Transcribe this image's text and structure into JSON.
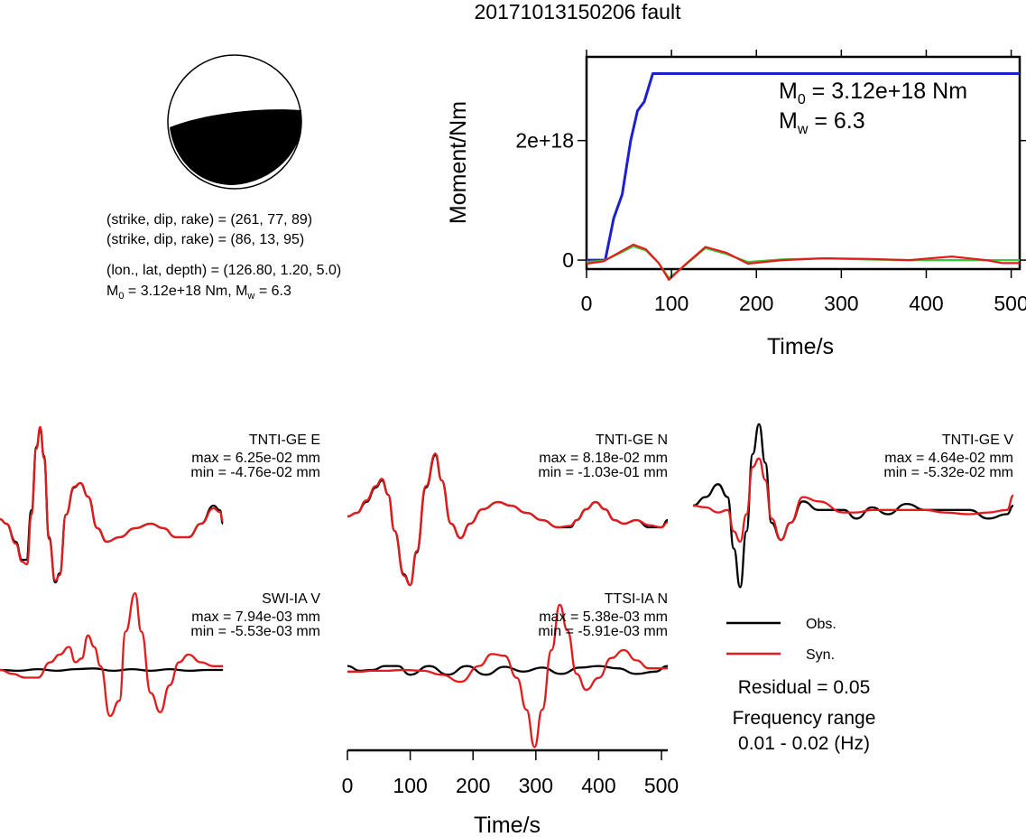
{
  "title": "20171013150206 fault",
  "focal": {
    "line1": "(strike, dip, rake) = (261, 77, 89)",
    "line2": "(strike, dip, rake) = (86, 13, 95)",
    "line3": "(lon., lat, depth) = (126.80, 1.20, 5.0)",
    "m0_prefix": "M",
    "m0_sub": "0",
    "m0_rest": " = 3.12e+18 Nm, M",
    "mw_sub": "w",
    "mw_rest": " = 6.3"
  },
  "moment_plot": {
    "ylabel": "Moment/Nm",
    "xlabel": "Time/s",
    "m0_label_prefix": "M",
    "m0_label_sub": "0",
    "m0_label_rest": " = 3.12e+18 Nm",
    "mw_label_prefix": "M",
    "mw_label_sub": "w",
    "mw_label_rest": " = 6.3",
    "xticks": [
      "0",
      "100",
      "200",
      "300",
      "400",
      "500"
    ],
    "yticks": [
      "0",
      "2e+18"
    ]
  },
  "waveforms": [
    {
      "station": "TNTI-GE E",
      "max": "max = 6.25e-02 mm",
      "min": "min = -4.76e-02 mm"
    },
    {
      "station": "TNTI-GE N",
      "max": "max = 8.18e-02 mm",
      "min": "min = -1.03e-01 mm"
    },
    {
      "station": "TNTI-GE V",
      "max": "max = 4.64e-02 mm",
      "min": "min = -5.32e-02 mm"
    },
    {
      "station": "SWI-IA V",
      "max": "max = 7.94e-03 mm",
      "min": "min = -5.53e-03 mm"
    },
    {
      "station": "TTSI-IA N",
      "max": "max = 5.38e-03 mm",
      "min": "min = -5.91e-03 mm"
    }
  ],
  "legend": {
    "obs": "Obs.",
    "syn": "Syn.",
    "residual": "Residual = 0.05",
    "freq_title": "Frequency range",
    "freq_value": "0.01 - 0.02 (Hz)"
  },
  "bottom_axis": {
    "xlabel": "Time/s",
    "xticks": [
      "0",
      "100",
      "200",
      "300",
      "400",
      "500"
    ]
  },
  "colors": {
    "obs": "#000000",
    "syn": "#e41a1c",
    "moment": "#1f1fd2",
    "green": "#33cc33"
  },
  "chart_data": [
    {
      "type": "line",
      "title": "20171013150206 fault",
      "xlabel": "Time/s",
      "ylabel": "Moment/Nm",
      "xlim": [
        0,
        510
      ],
      "ylim": [
        -1.5e+17,
        3.4e+18
      ],
      "series": [
        {
          "x": [
            0,
            22,
            32,
            42,
            52,
            60,
            68,
            78,
            200,
            300,
            400,
            510
          ],
          "values": [
            0,
            0,
            7e+17,
            1.1e+18,
            2e+18,
            2.5e+18,
            2.65e+18,
            3.12e+18,
            3.12e+18,
            3.12e+18,
            3.12e+18,
            3.12e+18
          ]
        },
        {
          "x": [
            0,
            20,
            40,
            55,
            70,
            85,
            97,
            115,
            140,
            165,
            190,
            230,
            280,
            330,
            380,
            430,
            470,
            510
          ],
          "values": [
            -3e+16,
            -1e+16,
            1.2e+17,
            2.3e+17,
            1.6e+17,
            -5e+16,
            -3e+17,
            -1e+17,
            2e+17,
            1e+17,
            -3e+16,
            1e+16,
            3e+16,
            1e+16,
            0,
            0,
            0,
            0
          ]
        },
        {
          "x": [
            0,
            20,
            40,
            55,
            70,
            85,
            97,
            115,
            140,
            165,
            190,
            230,
            280,
            330,
            380,
            430,
            470,
            490,
            510
          ],
          "values": [
            -6e+16,
            -2e+16,
            1.4e+17,
            2.6e+17,
            1.8e+17,
            -5e+16,
            -3.3e+17,
            -9e+16,
            2.2e+17,
            1.2e+17,
            -6e+16,
            0,
            3e+16,
            2e+16,
            0,
            6e+16,
            0,
            -5e+16,
            -5e+16
          ]
        }
      ]
    }
  ]
}
